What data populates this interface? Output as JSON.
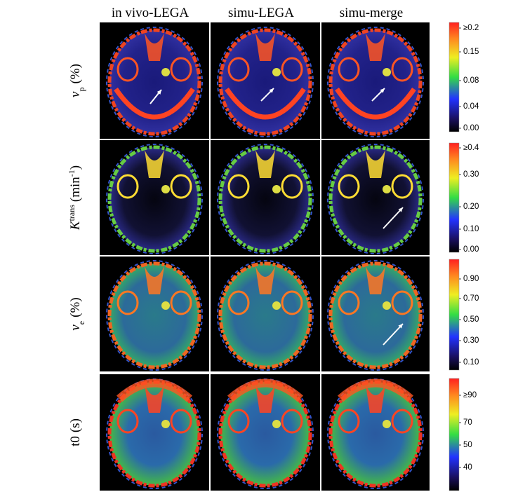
{
  "columns": [
    "in vivo-LEGA",
    "simu-LEGA",
    "simu-merge"
  ],
  "rows": [
    {
      "label": [
        {
          "text": "v",
          "style": "italic"
        },
        {
          "text": "p",
          "style": "sub"
        },
        {
          "text": "(%)",
          "style": "normal"
        }
      ],
      "colorbar_ticks": [
        "≥0.2",
        "0.15",
        "0.08",
        "0.04",
        "0.00"
      ]
    },
    {
      "label": [
        {
          "text": "K",
          "style": "italic"
        },
        {
          "text": "trans",
          "style": "sup"
        },
        {
          "text": "(min",
          "style": "normal"
        },
        {
          "text": "-1",
          "style": "sup"
        },
        {
          "text": ")",
          "style": "normal"
        }
      ],
      "colorbar_ticks": [
        "≥0.4",
        "0.30",
        "0.20",
        "0.10",
        "0.00"
      ]
    },
    {
      "label": [
        {
          "text": "v",
          "style": "italic"
        },
        {
          "text": "e",
          "style": "sub"
        },
        {
          "text": "(%)",
          "style": "normal"
        }
      ],
      "colorbar_ticks": [
        "0.90",
        "0.70",
        "0.50",
        "0.30",
        "0.10"
      ]
    },
    {
      "label": [
        {
          "text": "t0",
          "style": "normal"
        },
        {
          "text": "(s)",
          "style": "normal"
        }
      ],
      "colorbar_ticks": [
        "≥90",
        "70",
        "50",
        "40"
      ]
    }
  ]
}
